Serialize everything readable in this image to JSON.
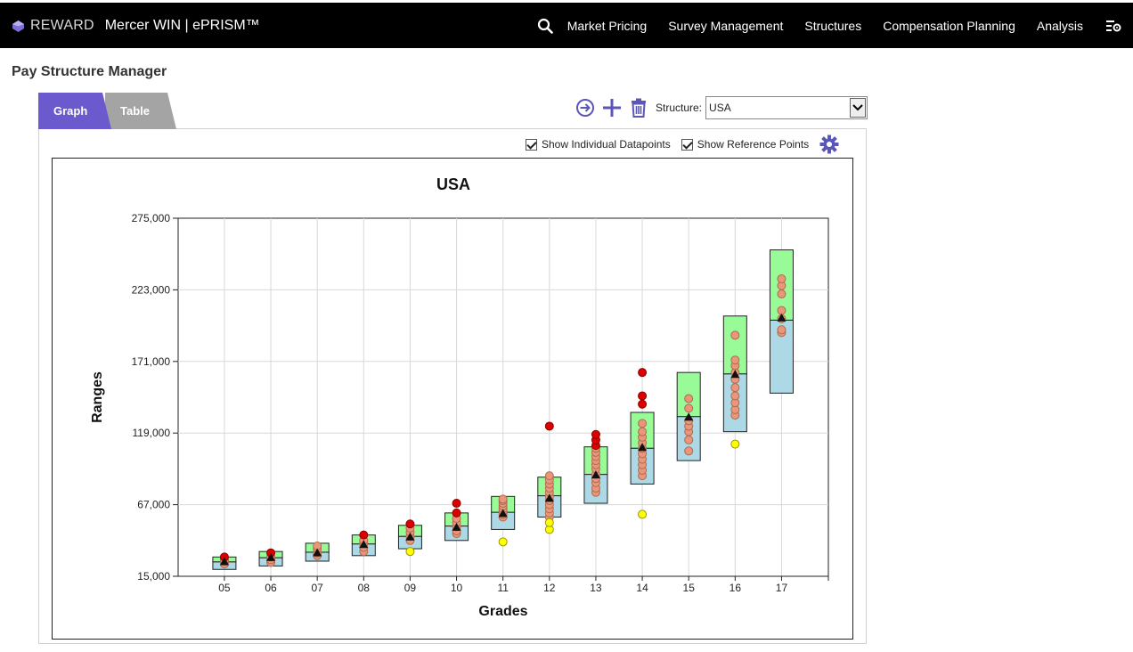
{
  "header": {
    "brand_reward": "REWARD",
    "brand_product": "Mercer WIN | ePRISM™",
    "nav": [
      "Market Pricing",
      "Survey Management",
      "Structures",
      "Compensation Planning",
      "Analysis"
    ],
    "icons": [
      "search-icon",
      "settings-icon"
    ]
  },
  "page": {
    "title": "Pay Structure Manager"
  },
  "tabs": [
    {
      "label": "Graph",
      "active": true
    },
    {
      "label": "Table",
      "active": false
    }
  ],
  "toolbar": {
    "icons": [
      "navigate-arrow-icon",
      "add-icon",
      "delete-icon"
    ],
    "structure_label": "Structure:",
    "structure_value": "USA"
  },
  "options": {
    "show_individual_datapoints": {
      "label": "Show Individual Datapoints",
      "checked": true
    },
    "show_reference_points": {
      "label": "Show Reference Points",
      "checked": true
    }
  },
  "colors": {
    "accent": "#6a5acd",
    "upper_band": "#98fb98",
    "lower_band": "#add8e6",
    "datapoint": "#e9967a",
    "high_point": "#dd0000",
    "low_point": "#ffff00"
  },
  "chart_data": {
    "type": "range",
    "title": "USA",
    "xlabel": "Grades",
    "ylabel": "Ranges",
    "ylim": [
      15000,
      275000
    ],
    "yticks": [
      "15,000",
      "67,000",
      "119,000",
      "171,000",
      "223,000",
      "275,000"
    ],
    "ytick_values": [
      15000,
      67000,
      119000,
      171000,
      223000,
      275000
    ],
    "categories": [
      "05",
      "06",
      "07",
      "08",
      "09",
      "10",
      "11",
      "12",
      "13",
      "14",
      "15",
      "16",
      "17"
    ],
    "grid": true,
    "ranges": [
      {
        "grade": "05",
        "min": 20000,
        "mid": 25500,
        "max": 29000,
        "median": 25000
      },
      {
        "grade": "06",
        "min": 22500,
        "mid": 28500,
        "max": 33000,
        "median": 28000
      },
      {
        "grade": "07",
        "min": 26000,
        "mid": 32500,
        "max": 39000,
        "median": 31500
      },
      {
        "grade": "08",
        "min": 30000,
        "mid": 38500,
        "max": 45000,
        "median": 37500
      },
      {
        "grade": "09",
        "min": 35000,
        "mid": 44000,
        "max": 52000,
        "median": 43000
      },
      {
        "grade": "10",
        "min": 41000,
        "mid": 51500,
        "max": 61000,
        "median": 50000
      },
      {
        "grade": "11",
        "min": 49000,
        "mid": 61500,
        "max": 73000,
        "median": 60000
      },
      {
        "grade": "12",
        "min": 58000,
        "mid": 73500,
        "max": 87000,
        "median": 71000
      },
      {
        "grade": "13",
        "min": 68000,
        "mid": 89000,
        "max": 109000,
        "median": 88000
      },
      {
        "grade": "14",
        "min": 82000,
        "mid": 108000,
        "max": 134000,
        "median": 108000
      },
      {
        "grade": "15",
        "min": 99000,
        "mid": 131000,
        "max": 163000,
        "median": 130000
      },
      {
        "grade": "16",
        "min": 120000,
        "mid": 162000,
        "max": 204000,
        "median": 161000
      },
      {
        "grade": "17",
        "min": 148000,
        "mid": 201000,
        "max": 252000,
        "median": 202000
      }
    ],
    "datapoints": [
      {
        "grade": "05",
        "values": [
          24000,
          26000,
          27000
        ]
      },
      {
        "grade": "06",
        "values": [
          25000,
          27000,
          29000
        ]
      },
      {
        "grade": "07",
        "values": [
          30000,
          32000,
          35000,
          37000
        ]
      },
      {
        "grade": "08",
        "values": [
          33000,
          36000,
          39000,
          41000
        ]
      },
      {
        "grade": "09",
        "values": [
          41000,
          44000,
          47000,
          50000
        ]
      },
      {
        "grade": "10",
        "values": [
          46000,
          48000,
          51000,
          54000,
          57000
        ]
      },
      {
        "grade": "11",
        "values": [
          58000,
          60000,
          62000,
          64000,
          66000,
          68000,
          70000,
          71000
        ]
      },
      {
        "grade": "12",
        "values": [
          58000,
          61000,
          64000,
          67000,
          70000,
          73000,
          76000,
          79000,
          82000,
          85000,
          88000
        ]
      },
      {
        "grade": "13",
        "values": [
          76000,
          79000,
          83000,
          86000,
          89000,
          93000,
          96000,
          99000,
          102000,
          105000,
          108000
        ]
      },
      {
        "grade": "14",
        "values": [
          88000,
          92000,
          96000,
          100000,
          104000,
          108000,
          112000,
          116000,
          120000,
          126000
        ]
      },
      {
        "grade": "15",
        "values": [
          106000,
          114000,
          120000,
          124000,
          128000,
          137000,
          144000
        ]
      },
      {
        "grade": "16",
        "values": [
          132000,
          136000,
          141000,
          146000,
          152000,
          158000,
          163000,
          168000,
          172000,
          190000
        ]
      },
      {
        "grade": "17",
        "values": [
          192000,
          194000,
          202000,
          208000,
          220000,
          226000,
          231000
        ]
      }
    ],
    "high_points": [
      {
        "grade": "05",
        "values": [
          29000
        ]
      },
      {
        "grade": "06",
        "values": [
          32000
        ]
      },
      {
        "grade": "08",
        "values": [
          45000
        ]
      },
      {
        "grade": "09",
        "values": [
          53000
        ]
      },
      {
        "grade": "10",
        "values": [
          61000,
          68000
        ]
      },
      {
        "grade": "12",
        "values": [
          124000
        ]
      },
      {
        "grade": "13",
        "values": [
          110000,
          114000,
          118000
        ]
      },
      {
        "grade": "14",
        "values": [
          140000,
          146000,
          163000
        ]
      }
    ],
    "low_points": [
      {
        "grade": "09",
        "values": [
          33000
        ]
      },
      {
        "grade": "11",
        "values": [
          40000
        ]
      },
      {
        "grade": "12",
        "values": [
          49000,
          54000
        ]
      },
      {
        "grade": "14",
        "values": [
          60000
        ]
      },
      {
        "grade": "16",
        "values": [
          111000
        ]
      }
    ]
  }
}
